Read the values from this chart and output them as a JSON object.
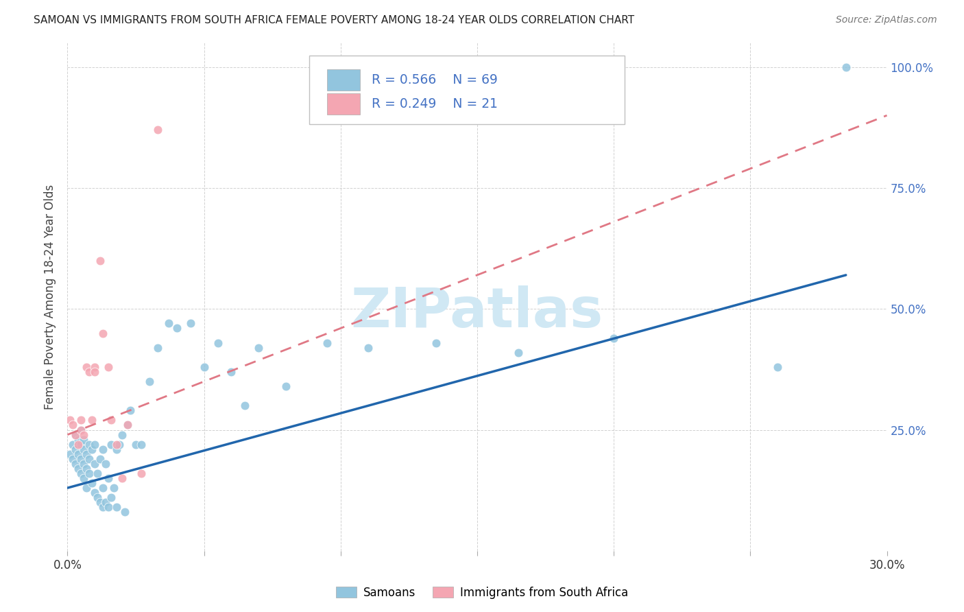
{
  "title": "SAMOAN VS IMMIGRANTS FROM SOUTH AFRICA FEMALE POVERTY AMONG 18-24 YEAR OLDS CORRELATION CHART",
  "source": "Source: ZipAtlas.com",
  "ylabel": "Female Poverty Among 18-24 Year Olds",
  "xlim": [
    0.0,
    0.3
  ],
  "ylim": [
    0.0,
    1.05
  ],
  "blue_color": "#92c5de",
  "pink_color": "#f4a6b2",
  "blue_line_color": "#2166ac",
  "pink_line_color": "#e07885",
  "watermark_text": "ZIPatlas",
  "watermark_color": "#d0e8f4",
  "samoans_x": [
    0.001,
    0.002,
    0.002,
    0.003,
    0.003,
    0.003,
    0.004,
    0.004,
    0.004,
    0.005,
    0.005,
    0.005,
    0.005,
    0.006,
    0.006,
    0.006,
    0.006,
    0.007,
    0.007,
    0.007,
    0.008,
    0.008,
    0.008,
    0.009,
    0.009,
    0.01,
    0.01,
    0.01,
    0.011,
    0.011,
    0.012,
    0.012,
    0.013,
    0.013,
    0.013,
    0.014,
    0.014,
    0.015,
    0.015,
    0.016,
    0.016,
    0.017,
    0.018,
    0.018,
    0.019,
    0.02,
    0.021,
    0.022,
    0.023,
    0.025,
    0.027,
    0.03,
    0.033,
    0.037,
    0.04,
    0.045,
    0.05,
    0.055,
    0.06,
    0.065,
    0.07,
    0.08,
    0.095,
    0.11,
    0.135,
    0.165,
    0.2,
    0.26,
    0.285
  ],
  "samoans_y": [
    0.2,
    0.22,
    0.19,
    0.21,
    0.18,
    0.24,
    0.2,
    0.17,
    0.23,
    0.19,
    0.22,
    0.16,
    0.25,
    0.18,
    0.21,
    0.15,
    0.23,
    0.17,
    0.2,
    0.13,
    0.16,
    0.22,
    0.19,
    0.14,
    0.21,
    0.12,
    0.18,
    0.22,
    0.11,
    0.16,
    0.1,
    0.19,
    0.09,
    0.13,
    0.21,
    0.1,
    0.18,
    0.09,
    0.15,
    0.11,
    0.22,
    0.13,
    0.09,
    0.21,
    0.22,
    0.24,
    0.08,
    0.26,
    0.29,
    0.22,
    0.22,
    0.35,
    0.42,
    0.47,
    0.46,
    0.47,
    0.38,
    0.43,
    0.37,
    0.3,
    0.42,
    0.34,
    0.43,
    0.42,
    0.43,
    0.41,
    0.44,
    0.38,
    1.0
  ],
  "sa_x": [
    0.001,
    0.002,
    0.003,
    0.004,
    0.005,
    0.005,
    0.006,
    0.007,
    0.008,
    0.009,
    0.01,
    0.01,
    0.012,
    0.013,
    0.015,
    0.016,
    0.018,
    0.02,
    0.022,
    0.027,
    0.033
  ],
  "sa_y": [
    0.27,
    0.26,
    0.24,
    0.22,
    0.25,
    0.27,
    0.24,
    0.38,
    0.37,
    0.27,
    0.38,
    0.37,
    0.6,
    0.45,
    0.38,
    0.27,
    0.22,
    0.15,
    0.26,
    0.16,
    0.87
  ],
  "blue_trendline_x": [
    0.0,
    0.285
  ],
  "blue_trendline_y": [
    0.13,
    0.57
  ],
  "pink_trendline_x": [
    0.0,
    0.3
  ],
  "pink_trendline_y": [
    0.24,
    0.9
  ]
}
